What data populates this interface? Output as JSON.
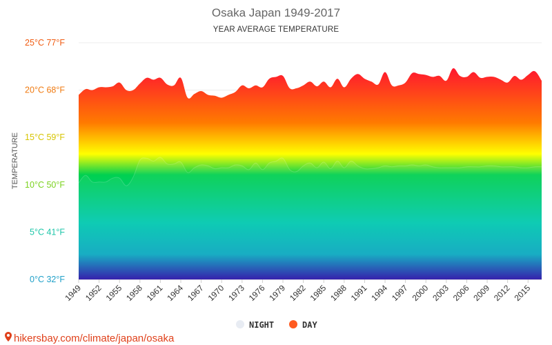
{
  "header": {
    "title": "Osaka Japan 1949-2017",
    "subtitle": "YEAR AVERAGE TEMPERATURE"
  },
  "source": {
    "text": "hikersbay.com/climate/japan/osaka",
    "icon": "map-pin-icon"
  },
  "legend": [
    {
      "label": "NIGHT",
      "color": "#e8ecf3"
    },
    {
      "label": "DAY",
      "color": "#ff5a1f"
    }
  ],
  "colors": {
    "gradient_top": "#ff1a2e",
    "gradient_orange": "#ff7a00",
    "gradient_yellow": "#ffff00",
    "gradient_green": "#00d050",
    "gradient_teal": "#00c8b0",
    "gradient_bottom": "#2a14a8"
  },
  "chart_data": {
    "type": "area",
    "title": "Osaka Japan 1949-2017",
    "subtitle": "YEAR AVERAGE TEMPERATURE",
    "ylabel": "TEMPERATURE",
    "xlabel": "",
    "ylim": [
      0,
      25
    ],
    "y_ticks": [
      {
        "value": 0,
        "label": "0°C 32°F",
        "color": "#1fa0c8"
      },
      {
        "value": 5,
        "label": "5°C 41°F",
        "color": "#1cc6a8"
      },
      {
        "value": 10,
        "label": "10°C 50°F",
        "color": "#7ad21e"
      },
      {
        "value": 15,
        "label": "15°C 59°F",
        "color": "#d6c400"
      },
      {
        "value": 20,
        "label": "20°C 68°F",
        "color": "#f07a10"
      },
      {
        "value": 25,
        "label": "25°C 77°F",
        "color": "#f05a10"
      }
    ],
    "x_tick_labels": [
      "1949",
      "1952",
      "1955",
      "1958",
      "1961",
      "1964",
      "1967",
      "1970",
      "1973",
      "1976",
      "1979",
      "1982",
      "1985",
      "1988",
      "1991",
      "1994",
      "1997",
      "2000",
      "2003",
      "2006",
      "2009",
      "2012",
      "2015"
    ],
    "x": [
      1949,
      1950,
      1951,
      1952,
      1953,
      1954,
      1955,
      1956,
      1957,
      1958,
      1959,
      1960,
      1961,
      1962,
      1963,
      1964,
      1965,
      1966,
      1967,
      1968,
      1969,
      1970,
      1971,
      1972,
      1973,
      1974,
      1975,
      1976,
      1977,
      1978,
      1979,
      1980,
      1981,
      1982,
      1983,
      1984,
      1985,
      1986,
      1987,
      1988,
      1989,
      1990,
      1991,
      1992,
      1993,
      1994,
      1995,
      1996,
      1997,
      1998,
      1999,
      2000,
      2001,
      2002,
      2003,
      2004,
      2005,
      2006,
      2007,
      2008,
      2009,
      2010,
      2011,
      2012,
      2013,
      2014,
      2015,
      2016,
      2017
    ],
    "grid": true,
    "legend_position": "bottom-center",
    "series": [
      {
        "name": "DAY",
        "values": [
          19.5,
          20.1,
          20.0,
          20.3,
          20.3,
          20.4,
          20.8,
          20.0,
          20.0,
          20.7,
          21.3,
          21.1,
          21.3,
          20.6,
          20.5,
          21.3,
          19.2,
          19.6,
          19.9,
          19.5,
          19.4,
          19.2,
          19.5,
          19.8,
          20.5,
          20.2,
          20.5,
          20.3,
          21.2,
          21.4,
          21.5,
          20.2,
          20.2,
          20.5,
          20.9,
          20.4,
          20.9,
          20.3,
          21.2,
          20.3,
          21.2,
          21.7,
          21.2,
          20.9,
          20.6,
          21.9,
          20.5,
          20.5,
          20.8,
          21.8,
          21.7,
          21.6,
          21.4,
          21.5,
          21.0,
          22.3,
          21.5,
          21.4,
          21.9,
          21.3,
          21.4,
          21.4,
          21.1,
          20.8,
          21.5,
          21.1,
          21.6,
          22.0,
          21.0
        ]
      },
      {
        "name": "NIGHT",
        "values": [
          10.2,
          11.0,
          10.3,
          10.3,
          10.3,
          10.7,
          10.7,
          9.9,
          10.8,
          12.6,
          12.8,
          12.5,
          12.9,
          12.2,
          12.2,
          12.4,
          11.3,
          11.8,
          12.1,
          12.0,
          11.7,
          11.8,
          11.8,
          12.1,
          12.0,
          11.6,
          12.3,
          11.6,
          12.3,
          12.5,
          12.8,
          11.6,
          11.4,
          12.0,
          12.3,
          11.8,
          12.4,
          11.7,
          12.5,
          11.8,
          12.5,
          12.0,
          11.7,
          11.7,
          11.8,
          12.0,
          11.9,
          12.0,
          12.0,
          12.1,
          12.0,
          12.1,
          11.9,
          11.8,
          11.8,
          11.8,
          11.8,
          11.9,
          11.9,
          11.9,
          12.0,
          12.0,
          11.9,
          11.9,
          11.9,
          11.8,
          11.8,
          11.9,
          11.9
        ]
      }
    ]
  }
}
